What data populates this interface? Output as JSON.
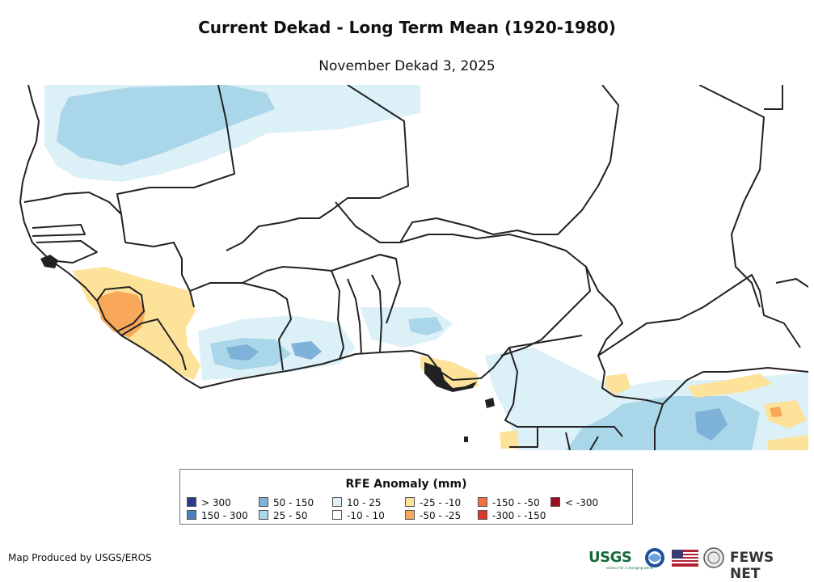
{
  "title": "Current Dekad - Long Term Mean (1920-1980)",
  "subtitle": "November Dekad 3, 2025",
  "legend": {
    "title": "RFE Anomaly (mm)",
    "items": [
      {
        "label": "> 300",
        "color": "#2b3a8f"
      },
      {
        "label": "150 - 300",
        "color": "#4a7fbf"
      },
      {
        "label": "50 - 150",
        "color": "#7fb2d8"
      },
      {
        "label": "25 - 50",
        "color": "#a9d6e8"
      },
      {
        "label": "10 - 25",
        "color": "#dcf0f8"
      },
      {
        "label": "-10 - 10",
        "color": "#ffffff"
      },
      {
        "label": "-25 - -10",
        "color": "#fde29a"
      },
      {
        "label": "-50 - -25",
        "color": "#f9a85a"
      },
      {
        "label": "-150 - -50",
        "color": "#f0703e"
      },
      {
        "label": "-300 - -150",
        "color": "#d7372c"
      },
      {
        "label": "< -300",
        "color": "#9e0a24"
      }
    ]
  },
  "credit": "Map Produced by USGS/EROS",
  "logos": {
    "usgs": "USGS",
    "usgs_tagline": "science for a changing world",
    "fews": "FEWS NET",
    "noaa_icon": "noaa-logo-icon",
    "flag_icon": "us-flag-icon",
    "seal_icon": "state-dept-seal-icon"
  }
}
